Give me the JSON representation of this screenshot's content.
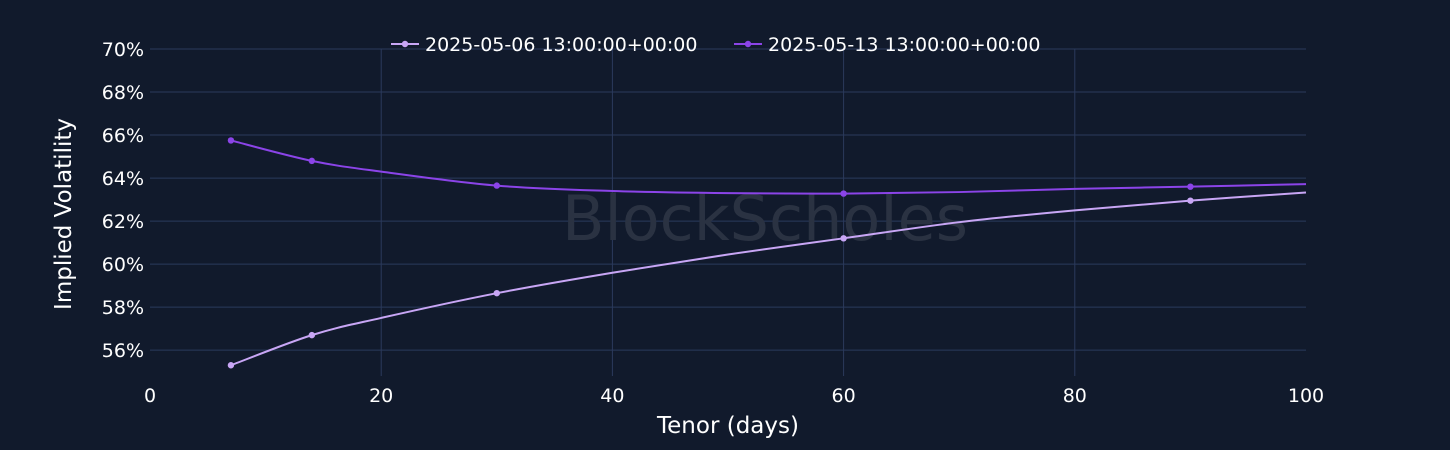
{
  "watermark": "BlockScholes",
  "colors": {
    "background": "#111a2c",
    "grid": "#2b3a5c",
    "series_a": "#c8a6f5",
    "series_b": "#8b44e8"
  },
  "chart_data": {
    "type": "line",
    "xlabel": "Tenor (days)",
    "ylabel": "Implied Volatility",
    "xlim": [
      0,
      100
    ],
    "ylim": [
      54.8,
      70
    ],
    "x_ticks": [
      0,
      20,
      40,
      60,
      80,
      100
    ],
    "y_ticks": [
      56,
      58,
      60,
      62,
      64,
      66,
      68,
      70
    ],
    "y_tick_suffix": "%",
    "grid": true,
    "legend_position": "top",
    "series": [
      {
        "name": "2025-05-06 13:00:00+00:00",
        "color": "#c8a6f5",
        "markers": [
          [
            7,
            55.3
          ],
          [
            14,
            56.7
          ],
          [
            30,
            58.65
          ],
          [
            60,
            61.2
          ],
          [
            90,
            62.95
          ]
        ],
        "curve": [
          [
            7,
            55.3
          ],
          [
            14,
            56.7
          ],
          [
            20,
            57.5
          ],
          [
            30,
            58.65
          ],
          [
            40,
            59.6
          ],
          [
            50,
            60.45
          ],
          [
            60,
            61.2
          ],
          [
            70,
            61.95
          ],
          [
            80,
            62.5
          ],
          [
            90,
            62.95
          ],
          [
            100,
            63.33
          ]
        ]
      },
      {
        "name": "2025-05-13 13:00:00+00:00",
        "color": "#8b44e8",
        "markers": [
          [
            7,
            65.75
          ],
          [
            14,
            64.8
          ],
          [
            30,
            63.65
          ],
          [
            60,
            63.28
          ],
          [
            90,
            63.6
          ]
        ],
        "curve": [
          [
            7,
            65.75
          ],
          [
            14,
            64.8
          ],
          [
            20,
            64.3
          ],
          [
            30,
            63.65
          ],
          [
            40,
            63.4
          ],
          [
            50,
            63.3
          ],
          [
            60,
            63.28
          ],
          [
            70,
            63.35
          ],
          [
            80,
            63.5
          ],
          [
            90,
            63.6
          ],
          [
            100,
            63.72
          ]
        ]
      }
    ]
  }
}
